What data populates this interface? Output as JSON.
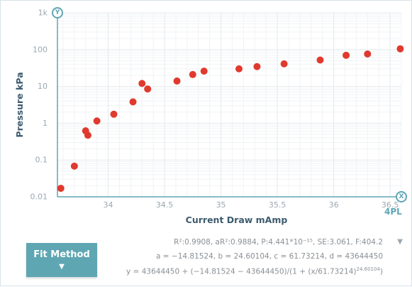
{
  "chart_data": {
    "type": "scatter",
    "xlabel": "Current Draw mAmp",
    "ylabel": "Pressure kPa",
    "xlim": [
      33.55,
      36.6
    ],
    "ylim": [
      0.01,
      1000
    ],
    "y_scale": "log",
    "grid": true,
    "x_ticks": [
      34,
      34.5,
      35,
      35.5,
      36,
      36.5
    ],
    "x_tick_labels": [
      "34",
      "34.5",
      "35",
      "35.5",
      "36",
      "36.5"
    ],
    "y_ticks": [
      0.01,
      0.1,
      1,
      10,
      100,
      1000
    ],
    "y_tick_labels": [
      "0.01",
      "0.1",
      "1",
      "10",
      "100",
      "1k"
    ],
    "point_color": "#e03a2e",
    "points": [
      {
        "x": 33.58,
        "y": 0.017
      },
      {
        "x": 33.7,
        "y": 0.068
      },
      {
        "x": 33.8,
        "y": 0.62
      },
      {
        "x": 33.82,
        "y": 0.47
      },
      {
        "x": 33.9,
        "y": 1.15
      },
      {
        "x": 34.05,
        "y": 1.75
      },
      {
        "x": 34.22,
        "y": 3.8
      },
      {
        "x": 34.3,
        "y": 12.0
      },
      {
        "x": 34.35,
        "y": 8.5
      },
      {
        "x": 34.61,
        "y": 14.0
      },
      {
        "x": 34.75,
        "y": 21.0
      },
      {
        "x": 34.85,
        "y": 26.0
      },
      {
        "x": 35.16,
        "y": 30.0
      },
      {
        "x": 35.32,
        "y": 34.5
      },
      {
        "x": 35.56,
        "y": 41.0
      },
      {
        "x": 35.88,
        "y": 52.0
      },
      {
        "x": 36.11,
        "y": 70.0
      },
      {
        "x": 36.3,
        "y": 76.0
      },
      {
        "x": 36.59,
        "y": 105.0
      }
    ]
  },
  "axis_badges": {
    "y": "Y",
    "x": "X"
  },
  "model_label": "4PL",
  "fit_button": {
    "label": "Fit Method",
    "arrow": "▼"
  },
  "stats_toggle": "▼",
  "fit_stats": {
    "line1": "R²:0.9908, aR²:0.9884, P:4.441*10⁻¹⁵, SE:3.061, F:404.2",
    "line2": "a = −14.81524, b = 24.60104, c = 61.73214, d = 43644450",
    "line3_main": "y = 43644450 + (−14.81524 − 43644450)/(1 + (x/61.73214)",
    "line3_exp": "24.60104",
    "line3_close": ")"
  },
  "colors": {
    "accent": "#5fa6b3",
    "axis_title": "#3d5b6e",
    "grid": "#e4e8eb",
    "point": "#e03a2e"
  }
}
